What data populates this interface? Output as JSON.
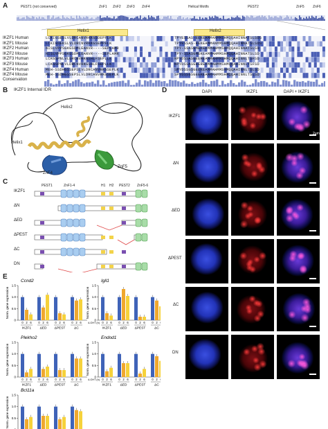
{
  "panels": {
    "A": "A",
    "B": "B",
    "C": "C",
    "D": "D",
    "E": "E"
  },
  "panelA": {
    "domains": [
      "PEST1 (not conserved)",
      "ZnF1",
      "ZnF2",
      "ZnF3",
      "ZnF4",
      "Helical Motifs",
      "PEST2",
      "ZnF5",
      "ZnF6"
    ],
    "helix1": "Helix1",
    "helix2": "Helix2",
    "species": [
      "IKZF1 Human",
      "IKZF1 Mouse",
      "IKZF2 Human",
      "IKZF2 Mouse",
      "IKZF3 Human",
      "IKZF3 Mouse",
      "IKZF4 Human",
      "IKZF4 Mouse"
    ],
    "sequences": [
      "LCKIGSESLVLDRCANVRKKGSDEPFLK",
      "LCKIGSEKSLVLDRCNVRKKGSEPPFLK",
      "NISLVPPSGKGSDMLEANVR----SEPLAMR",
      "NISLVPPSGKGSDMLEANVR----SEPLAMR",
      "LCKGSPNLVLDRCNVRKGSHLFSEPLLK",
      "LCKGSPNLVLDRCNVRKGSHLFSEPLLK",
      "MEH-SSDHGSSEPSLVLDRCANVRKGSEPLK",
      "MEH-SSDHGSSEPSLVLDRCANVRKGSEPLK"
    ],
    "sequences2": [
      "TPYESSAS-EEKEAMMANMMSHMQQAHINNATSLSDS",
      "TPYESSAS-EEKEAMMANMMSHMQQAHINNATSLSDS",
      "TPY-SSASGMEKEAMMAHMMSHMQQAHINNATSLSD",
      "TPY-SSASGMEKEAMMAHMMSHMQQAHINNATSLSD",
      "NPYDSSASGEEREAMMAHMMSHMQQAHINNLTSFSD",
      "NPYDSSASGEEREAMMAHMMSHMQQAHINNLTSFSD",
      "SPYDSSGSGEEKEAMMAHMMSHMQQAHINNLTSLSD",
      "SPYDSSGSGEEKEAMMAHMMSHMQQAHINNLTSLSD"
    ],
    "conservation_label": "Conservation"
  },
  "panelB": {
    "title": "IKZF1 Internal IDR",
    "labels": [
      "Helix2",
      "Helix1",
      "ZnF4",
      "ZnF5"
    ]
  },
  "panelC": {
    "header": [
      "PEST1",
      "ZnF1-4",
      "H1",
      "H2",
      "PEST2",
      "ZnF5-6"
    ],
    "rows": [
      "IKZF1",
      "ΔN",
      "ΔED",
      "ΔPEST",
      "ΔC",
      "DN"
    ]
  },
  "panelD": {
    "columns": [
      "DAPI",
      "IKZF1",
      "DAPI + IKZF1"
    ],
    "rows": [
      "IKZF1",
      "ΔN",
      "ΔED",
      "ΔPEST",
      "ΔC",
      "DN"
    ],
    "scale": "2μm"
  },
  "panelE": {
    "ylabel": "Norm. gene expression",
    "xunit": "4-OHT (h)",
    "timepoints": [
      "0",
      "2",
      "6"
    ],
    "groups": [
      "IKZF1",
      "ΔED",
      "ΔPEST",
      "ΔC"
    ],
    "colors": [
      "#3f63b8",
      "#f0a82e",
      "#f6d23a"
    ],
    "chart_data": [
      {
        "type": "bar",
        "title": "Ccnd2",
        "ylim": [
          0,
          1.5
        ],
        "yticks": [
          "0",
          "0.5",
          "1.0",
          "1.5"
        ],
        "series": [
          {
            "values": [
              1,
              0.45,
              0.25
            ]
          },
          {
            "values": [
              1,
              0.55,
              1.1
            ]
          },
          {
            "values": [
              1,
              0.3,
              0.25
            ]
          },
          {
            "values": [
              1,
              0.85,
              0.9
            ]
          }
        ]
      },
      {
        "type": "bar",
        "title": "Igll1",
        "ylim": [
          0,
          1.5
        ],
        "yticks": [
          "0",
          "0.5",
          "1.0",
          "1.5"
        ],
        "series": [
          {
            "values": [
              1,
              0.3,
              0.2
            ]
          },
          {
            "values": [
              1,
              1.35,
              1.05
            ]
          },
          {
            "values": [
              1,
              0.15,
              0.15
            ]
          },
          {
            "values": [
              1,
              0.85,
              0.6
            ]
          }
        ]
      },
      {
        "type": "bar",
        "title": "Plekho2",
        "ylim": [
          0,
          1.5
        ],
        "yticks": [
          "0",
          "0.5",
          "1.0",
          "1.5"
        ],
        "series": [
          {
            "values": [
              1,
              0.2,
              0.35
            ]
          },
          {
            "values": [
              1,
              0.35,
              0.45
            ]
          },
          {
            "values": [
              1,
              0.3,
              0.3
            ]
          },
          {
            "values": [
              1,
              0.8,
              0.8
            ]
          }
        ]
      },
      {
        "type": "bar",
        "title": "Endod1",
        "ylim": [
          0,
          1.5
        ],
        "yticks": [
          "0",
          "0.5",
          "1.0",
          "1.5"
        ],
        "series": [
          {
            "values": [
              1,
              0.25,
              0.4
            ]
          },
          {
            "values": [
              1,
              0.6,
              0.6
            ]
          },
          {
            "values": [
              1,
              0.15,
              0.35
            ]
          },
          {
            "values": [
              1,
              0.9,
              0.7
            ]
          }
        ]
      },
      {
        "type": "bar",
        "title": "Bcl11a",
        "ylim": [
          0,
          1.5
        ],
        "yticks": [
          "0",
          "0.5",
          "1.0",
          "1.5"
        ],
        "series": [
          {
            "values": [
              1,
              0.45,
              0.55
            ]
          },
          {
            "values": [
              1,
              0.6,
              0.6
            ]
          },
          {
            "values": [
              1,
              0.45,
              0.55
            ]
          },
          {
            "values": [
              1,
              0.85,
              0.8
            ]
          }
        ]
      }
    ]
  }
}
